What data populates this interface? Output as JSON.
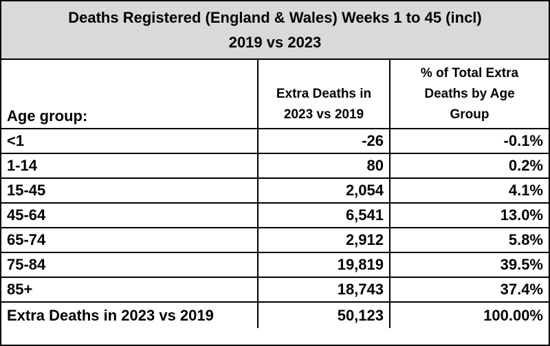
{
  "title": {
    "line1": "Deaths Registered (England & Wales) Weeks 1 to 45 (incl)",
    "line2": "2019 vs 2023"
  },
  "headers": {
    "age_group": "Age group:",
    "extra_deaths_line1": "Extra Deaths in",
    "extra_deaths_line2": "2023 vs 2019",
    "pct_line1": "% of Total Extra",
    "pct_line2": "Deaths by Age",
    "pct_line3": "Group"
  },
  "rows": [
    {
      "age": "<1",
      "extra": "-26",
      "pct": "-0.1%"
    },
    {
      "age": "1-14",
      "extra": "80",
      "pct": "0.2%"
    },
    {
      "age": "15-45",
      "extra": "2,054",
      "pct": "4.1%"
    },
    {
      "age": "45-64",
      "extra": "6,541",
      "pct": "13.0%"
    },
    {
      "age": "65-74",
      "extra": "2,912",
      "pct": "5.8%"
    },
    {
      "age": "75-84",
      "extra": "19,819",
      "pct": "39.5%"
    },
    {
      "age": "85+",
      "extra": "18,743",
      "pct": "37.4%"
    }
  ],
  "total": {
    "label": "Extra Deaths in 2023 vs 2019",
    "extra": "50,123",
    "pct": "100.00%"
  },
  "colors": {
    "title_background": "#d9d9d9",
    "border": "#000000"
  }
}
